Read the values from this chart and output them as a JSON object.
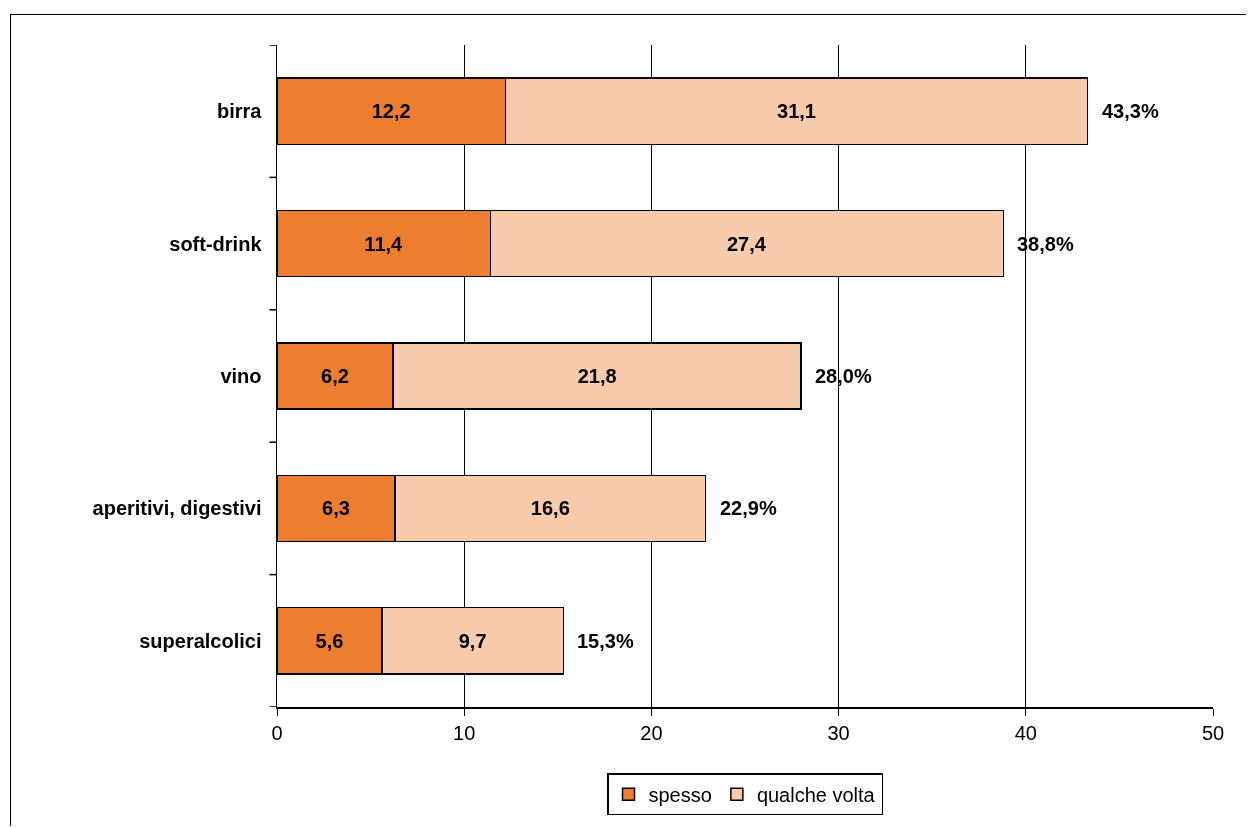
{
  "chart_data": {
    "type": "bar",
    "orientation": "horizontal",
    "stacked": true,
    "categories": [
      "birra",
      "soft-drink",
      "vino",
      "aperitivi, digestivi",
      "superalcolici"
    ],
    "series": [
      {
        "name": "spesso",
        "color": "#ed7d31",
        "values": [
          12.2,
          11.4,
          6.2,
          6.3,
          5.6
        ],
        "value_labels": [
          "12,2",
          "11,4",
          "6,2",
          "6,3",
          "5,6"
        ]
      },
      {
        "name": "qualche volta",
        "color": "#f8cbad",
        "values": [
          31.1,
          27.4,
          21.8,
          16.6,
          9.7
        ],
        "value_labels": [
          "31,1",
          "27,4",
          "21,8",
          "16,6",
          "9,7"
        ]
      }
    ],
    "totals": [
      "43,3%",
      "38,8%",
      "28,0%",
      "22,9%",
      "15,3%"
    ],
    "xlim": [
      0,
      50
    ],
    "xticks": [
      0,
      10,
      20,
      30,
      40,
      50
    ],
    "grid": "x",
    "legend": "bottom"
  }
}
